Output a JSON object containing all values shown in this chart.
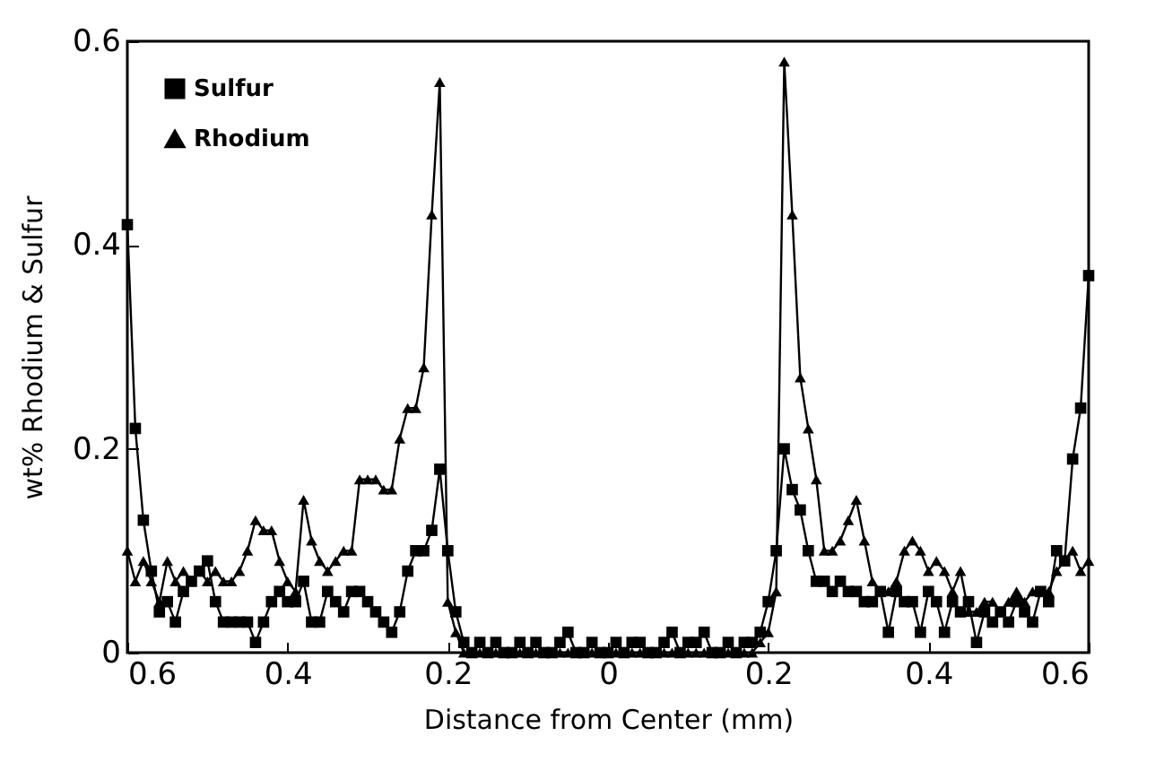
{
  "chart_data": {
    "type": "line",
    "xlabel": "Distance from Center (mm)",
    "ylabel": "wt% Rhodium & Sulfur",
    "x": [
      -0.6,
      -0.59,
      -0.58,
      -0.57,
      -0.56,
      -0.55,
      -0.54,
      -0.53,
      -0.52,
      -0.51,
      -0.5,
      -0.49,
      -0.48,
      -0.47,
      -0.46,
      -0.45,
      -0.44,
      -0.43,
      -0.42,
      -0.41,
      -0.4,
      -0.39,
      -0.38,
      -0.37,
      -0.36,
      -0.35,
      -0.34,
      -0.33,
      -0.32,
      -0.31,
      -0.3,
      -0.29,
      -0.28,
      -0.27,
      -0.26,
      -0.25,
      -0.24,
      -0.23,
      -0.22,
      -0.21,
      -0.2,
      -0.19,
      -0.18,
      -0.17,
      -0.16,
      -0.15,
      -0.14,
      -0.13,
      -0.12,
      -0.11,
      -0.1,
      -0.09,
      -0.08,
      -0.07,
      -0.06,
      -0.05,
      -0.04,
      -0.03,
      -0.02,
      -0.01,
      0,
      0.01,
      0.02,
      0.03,
      0.04,
      0.05,
      0.06,
      0.07,
      0.08,
      0.09,
      0.1,
      0.11,
      0.12,
      0.13,
      0.14,
      0.15,
      0.16,
      0.17,
      0.18,
      0.19,
      0.2,
      0.21,
      0.22,
      0.23,
      0.24,
      0.25,
      0.26,
      0.27,
      0.28,
      0.29,
      0.3,
      0.31,
      0.32,
      0.33,
      0.34,
      0.35,
      0.36,
      0.37,
      0.38,
      0.39,
      0.4,
      0.41,
      0.42,
      0.43,
      0.44,
      0.45,
      0.46,
      0.47,
      0.48,
      0.49,
      0.5,
      0.51,
      0.52,
      0.53,
      0.54,
      0.55,
      0.56,
      0.57,
      0.58,
      0.59,
      0.6
    ],
    "series": [
      {
        "name": "Sulfur",
        "color": "#000000",
        "marker": "square",
        "values": [
          0.42,
          0.22,
          0.13,
          0.08,
          0.04,
          0.05,
          0.03,
          0.06,
          0.07,
          0.08,
          0.09,
          0.05,
          0.03,
          0.03,
          0.03,
          0.03,
          0.01,
          0.03,
          0.05,
          0.06,
          0.05,
          0.05,
          0.07,
          0.03,
          0.03,
          0.06,
          0.05,
          0.04,
          0.06,
          0.06,
          0.05,
          0.04,
          0.03,
          0.02,
          0.04,
          0.08,
          0.1,
          0.1,
          0.12,
          0.18,
          0.1,
          0.04,
          0.01,
          0,
          0.01,
          0,
          0.01,
          0,
          0,
          0.01,
          0,
          0.01,
          0,
          0,
          0.01,
          0.02,
          0,
          0,
          0.01,
          0,
          0,
          0.01,
          0,
          0.01,
          0.01,
          0,
          0,
          0.01,
          0.02,
          0,
          0.01,
          0.01,
          0.02,
          0,
          0,
          0.01,
          0,
          0.01,
          0.01,
          0.02,
          0.05,
          0.1,
          0.2,
          0.16,
          0.14,
          0.1,
          0.07,
          0.07,
          0.06,
          0.07,
          0.06,
          0.06,
          0.05,
          0.05,
          0.06,
          0.02,
          0.06,
          0.05,
          0.05,
          0.02,
          0.06,
          0.05,
          0.02,
          0.05,
          0.04,
          0.05,
          0.01,
          0.04,
          0.03,
          0.04,
          0.03,
          0.05,
          0.04,
          0.03,
          0.06,
          0.05,
          0.1,
          0.09,
          0.19,
          0.24,
          0.37
        ]
      },
      {
        "name": "Rhodium",
        "color": "#000000",
        "marker": "triangle",
        "values": [
          0.1,
          0.07,
          0.09,
          0.07,
          0.05,
          0.09,
          0.07,
          0.08,
          0.07,
          0.08,
          0.07,
          0.08,
          0.07,
          0.07,
          0.08,
          0.1,
          0.13,
          0.12,
          0.12,
          0.09,
          0.07,
          0.06,
          0.15,
          0.11,
          0.09,
          0.08,
          0.09,
          0.1,
          0.1,
          0.17,
          0.17,
          0.17,
          0.16,
          0.16,
          0.21,
          0.24,
          0.24,
          0.28,
          0.43,
          0.56,
          0.05,
          0.02,
          0,
          0,
          0,
          0,
          0,
          0,
          0,
          0,
          0,
          0,
          0,
          0,
          0,
          0,
          0,
          0,
          0,
          0,
          0,
          0,
          0,
          0,
          0,
          0,
          0,
          0,
          0,
          0,
          0,
          0,
          0,
          0,
          0,
          0,
          0,
          0,
          0,
          0.01,
          0.02,
          0.06,
          0.58,
          0.43,
          0.27,
          0.22,
          0.17,
          0.1,
          0.1,
          0.11,
          0.13,
          0.15,
          0.11,
          0.07,
          0.06,
          0.06,
          0.07,
          0.1,
          0.11,
          0.1,
          0.08,
          0.09,
          0.08,
          0.06,
          0.08,
          0.04,
          0.04,
          0.05,
          0.05,
          0.04,
          0.05,
          0.06,
          0.05,
          0.06,
          0.06,
          0.06,
          0.08,
          0.09,
          0.1,
          0.08,
          0.09
        ]
      }
    ],
    "xlim": [
      -0.6,
      0.6
    ],
    "xticks": [
      {
        "value": -0.6,
        "label": "0.6"
      },
      {
        "value": -0.4,
        "label": "0.4"
      },
      {
        "value": -0.2,
        "label": "0.2"
      },
      0,
      0.2,
      0.4,
      0.6
    ],
    "ylim": [
      0,
      0.6
    ],
    "yticks": [
      0,
      0.2,
      0.4,
      0.6
    ],
    "legend": "top left",
    "line_style": "solid"
  }
}
